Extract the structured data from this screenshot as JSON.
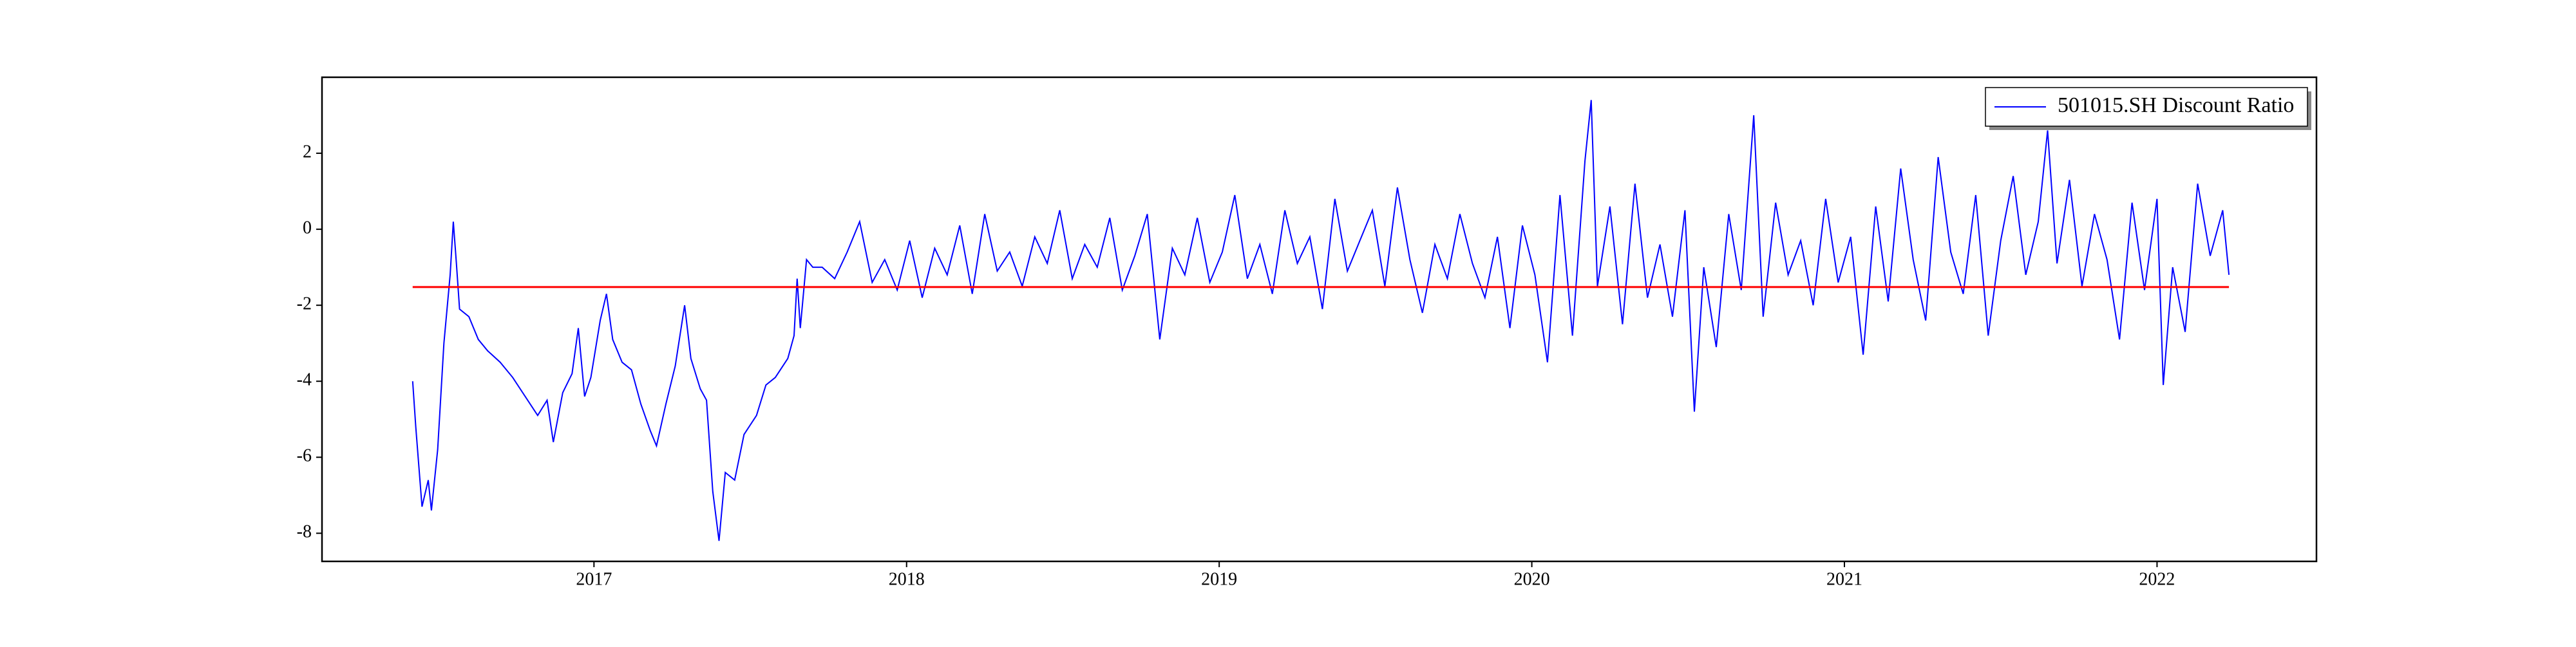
{
  "chart_data": {
    "type": "line",
    "xlim": [
      2016.13,
      2022.51
    ],
    "xticks": [
      2017,
      2018,
      2019,
      2020,
      2021,
      2022
    ],
    "ylim": [
      -8.74,
      4.0
    ],
    "yticks": [
      -8,
      -6,
      -4,
      -2,
      0,
      2
    ],
    "legend": "upper right",
    "reference_line": {
      "value": -1.52,
      "color": "#ff0000"
    },
    "series": [
      {
        "name": "501015.SH Discount Ratio",
        "color": "#0000ff",
        "x": [
          2016.42,
          2016.43,
          2016.45,
          2016.47,
          2016.48,
          2016.5,
          2016.52,
          2016.54,
          2016.55,
          2016.56,
          2016.57,
          2016.6,
          2016.63,
          2016.66,
          2016.7,
          2016.74,
          2016.78,
          2016.82,
          2016.85,
          2016.87,
          2016.9,
          2016.93,
          2016.95,
          2016.97,
          2016.99,
          2017.02,
          2017.04,
          2017.06,
          2017.09,
          2017.12,
          2017.15,
          2017.18,
          2017.2,
          2017.23,
          2017.26,
          2017.29,
          2017.31,
          2017.34,
          2017.36,
          2017.38,
          2017.4,
          2017.42,
          2017.45,
          2017.48,
          2017.52,
          2017.55,
          2017.58,
          2017.62,
          2017.64,
          2017.65,
          2017.66,
          2017.68,
          2017.7,
          2017.73,
          2017.77,
          2017.81,
          2017.85,
          2017.89,
          2017.93,
          2017.97,
          2018.01,
          2018.05,
          2018.09,
          2018.13,
          2018.17,
          2018.21,
          2018.25,
          2018.29,
          2018.33,
          2018.37,
          2018.41,
          2018.45,
          2018.49,
          2018.53,
          2018.57,
          2018.61,
          2018.65,
          2018.69,
          2018.73,
          2018.77,
          2018.81,
          2018.85,
          2018.89,
          2018.93,
          2018.97,
          2019.01,
          2019.05,
          2019.09,
          2019.13,
          2019.17,
          2019.21,
          2019.25,
          2019.29,
          2019.33,
          2019.37,
          2019.41,
          2019.45,
          2019.49,
          2019.53,
          2019.57,
          2019.61,
          2019.65,
          2019.69,
          2019.73,
          2019.77,
          2019.81,
          2019.85,
          2019.89,
          2019.93,
          2019.97,
          2020.01,
          2020.05,
          2020.09,
          2020.13,
          2020.17,
          2020.19,
          2020.21,
          2020.25,
          2020.29,
          2020.33,
          2020.37,
          2020.41,
          2020.45,
          2020.49,
          2020.52,
          2020.55,
          2020.59,
          2020.63,
          2020.67,
          2020.71,
          2020.74,
          2020.78,
          2020.82,
          2020.86,
          2020.9,
          2020.94,
          2020.98,
          2021.02,
          2021.06,
          2021.1,
          2021.14,
          2021.18,
          2021.22,
          2021.26,
          2021.3,
          2021.34,
          2021.38,
          2021.42,
          2021.46,
          2021.5,
          2021.54,
          2021.58,
          2021.62,
          2021.65,
          2021.68,
          2021.72,
          2021.76,
          2021.8,
          2021.84,
          2021.88,
          2021.92,
          2021.96,
          2022.0,
          2022.02,
          2022.05,
          2022.09,
          2022.13,
          2022.17,
          2022.21,
          2022.23
        ],
        "values": [
          -4.0,
          -5.2,
          -7.3,
          -6.6,
          -7.4,
          -5.8,
          -3.0,
          -1.2,
          0.2,
          -0.9,
          -2.1,
          -2.3,
          -2.9,
          -3.2,
          -3.5,
          -3.9,
          -4.4,
          -4.9,
          -4.5,
          -5.6,
          -4.3,
          -3.8,
          -2.6,
          -4.4,
          -3.9,
          -2.4,
          -1.7,
          -2.9,
          -3.5,
          -3.7,
          -4.6,
          -5.3,
          -5.7,
          -4.6,
          -3.6,
          -2.0,
          -3.4,
          -4.2,
          -4.5,
          -6.9,
          -8.2,
          -6.4,
          -6.6,
          -5.4,
          -4.9,
          -4.1,
          -3.9,
          -3.4,
          -2.8,
          -1.3,
          -2.6,
          -0.8,
          -1.0,
          -1.0,
          -1.3,
          -0.6,
          0.2,
          -1.4,
          -0.8,
          -1.6,
          -0.3,
          -1.8,
          -0.5,
          -1.2,
          0.1,
          -1.7,
          0.4,
          -1.1,
          -0.6,
          -1.5,
          -0.2,
          -0.9,
          0.5,
          -1.3,
          -0.4,
          -1.0,
          0.3,
          -1.6,
          -0.7,
          0.4,
          -2.9,
          -0.5,
          -1.2,
          0.3,
          -1.4,
          -0.6,
          0.9,
          -1.3,
          -0.4,
          -1.7,
          0.5,
          -0.9,
          -0.2,
          -2.1,
          0.8,
          -1.1,
          -0.3,
          0.5,
          -1.5,
          1.1,
          -0.8,
          -2.2,
          -0.4,
          -1.3,
          0.4,
          -0.9,
          -1.8,
          -0.2,
          -2.6,
          0.1,
          -1.2,
          -3.5,
          0.9,
          -2.8,
          1.8,
          3.4,
          -1.5,
          0.6,
          -2.5,
          1.2,
          -1.8,
          -0.4,
          -2.3,
          0.5,
          -4.8,
          -1.0,
          -3.1,
          0.4,
          -1.6,
          3.0,
          -2.3,
          0.7,
          -1.2,
          -0.3,
          -2.0,
          0.8,
          -1.4,
          -0.2,
          -3.3,
          0.6,
          -1.9,
          1.6,
          -0.8,
          -2.4,
          1.9,
          -0.6,
          -1.7,
          0.9,
          -2.8,
          -0.3,
          1.4,
          -1.2,
          0.2,
          2.6,
          -0.9,
          1.3,
          -1.5,
          0.4,
          -0.8,
          -2.9,
          0.7,
          -1.6,
          0.8,
          -4.1,
          -1.0,
          -2.7,
          1.2,
          -0.7,
          0.5,
          -1.2
        ]
      }
    ]
  }
}
